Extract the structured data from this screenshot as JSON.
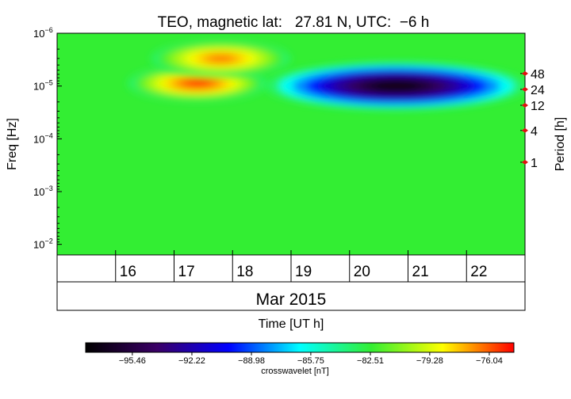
{
  "chart_data": {
    "type": "heatmap",
    "title": "TEO, magnetic lat:   27.81 N, UTC:  −6 h",
    "ylabel": "Freq [Hz]",
    "ylabel_right": "Period [h]",
    "xlabel": "Time [UT h]",
    "month_label": "Mar 2015",
    "colorbar_label": "crosswavelet [nT]",
    "freq_ticks": [
      {
        "base": "10",
        "exp": "−6",
        "value": 1e-06
      },
      {
        "base": "10",
        "exp": "−5",
        "value": 1e-05
      },
      {
        "base": "10",
        "exp": "−4",
        "value": 0.0001
      },
      {
        "base": "10",
        "exp": "−3",
        "value": 0.001
      },
      {
        "base": "10",
        "exp": "−2",
        "value": 0.01
      }
    ],
    "freq_range_log10": [
      -6,
      -1.8
    ],
    "period_ticks": [
      {
        "label": "48",
        "hours": 48
      },
      {
        "label": "24",
        "hours": 24
      },
      {
        "label": "12",
        "hours": 12
      },
      {
        "label": "4",
        "hours": 4
      },
      {
        "label": "1",
        "hours": 1
      }
    ],
    "day_ticks": [
      {
        "label": "16",
        "day": 16
      },
      {
        "label": "17",
        "day": 17
      },
      {
        "label": "18",
        "day": 18
      },
      {
        "label": "19",
        "day": 19
      },
      {
        "label": "20",
        "day": 20
      },
      {
        "label": "21",
        "day": 21
      },
      {
        "label": "22",
        "day": 22
      }
    ],
    "time_range_days": [
      15,
      23
    ],
    "colorbar": {
      "range": [
        -98.0,
        -74.7
      ],
      "ticks": [
        "−95.46",
        "−92.22",
        "−88.98",
        "−85.75",
        "−82.51",
        "−79.28",
        "−76.04"
      ],
      "tick_values": [
        -95.46,
        -92.22,
        -88.98,
        -85.75,
        -82.51,
        -79.28,
        -76.04
      ],
      "colors": [
        "#000000",
        "#3a0066",
        "#0000ff",
        "#00ffff",
        "#33ee33",
        "#ffff00",
        "#ff0000"
      ]
    },
    "background_value": -83.5,
    "features": [
      {
        "kind": "maximum",
        "center_day": 17.4,
        "center_log10_freq": -5.05,
        "value": -75.5
      },
      {
        "kind": "maximum",
        "center_day": 17.8,
        "center_log10_freq": -5.52,
        "value": -76.5
      },
      {
        "kind": "minimum",
        "center_day": 20.8,
        "center_log10_freq": -5.0,
        "value": -97.5
      }
    ]
  }
}
